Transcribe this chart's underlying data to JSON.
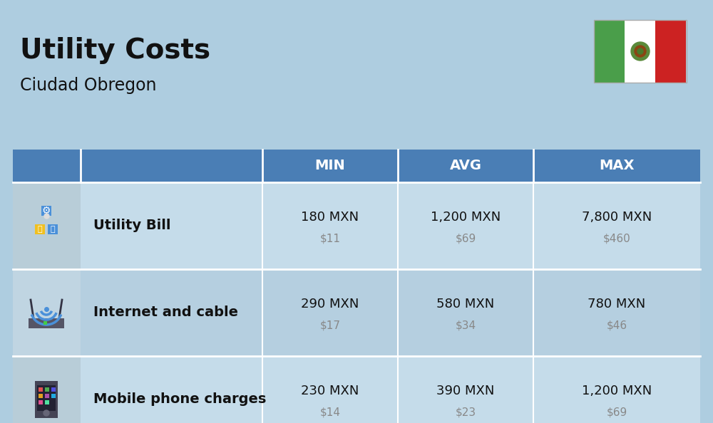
{
  "title": "Utility Costs",
  "subtitle": "Ciudad Obregon",
  "background_color": "#aecde0",
  "header_bg_color": "#4a7eb5",
  "header_text_color": "#ffffff",
  "row_bg_light": "#c5dcea",
  "row_bg_dark": "#b5cfe0",
  "col_headers": [
    "MIN",
    "AVG",
    "MAX"
  ],
  "rows": [
    {
      "label": "Utility Bill",
      "min_mxn": "180 MXN",
      "min_usd": "$11",
      "avg_mxn": "1,200 MXN",
      "avg_usd": "$69",
      "max_mxn": "7,800 MXN",
      "max_usd": "$460"
    },
    {
      "label": "Internet and cable",
      "min_mxn": "290 MXN",
      "min_usd": "$17",
      "avg_mxn": "580 MXN",
      "avg_usd": "$34",
      "max_mxn": "780 MXN",
      "max_usd": "$46"
    },
    {
      "label": "Mobile phone charges",
      "min_mxn": "230 MXN",
      "min_usd": "$14",
      "avg_mxn": "390 MXN",
      "avg_usd": "$23",
      "max_mxn": "1,200 MXN",
      "max_usd": "$69"
    }
  ],
  "flag_green": "#4a9e4a",
  "flag_white": "#ffffff",
  "flag_red": "#cc2222",
  "text_dark": "#111111",
  "text_gray": "#888888",
  "white": "#ffffff"
}
